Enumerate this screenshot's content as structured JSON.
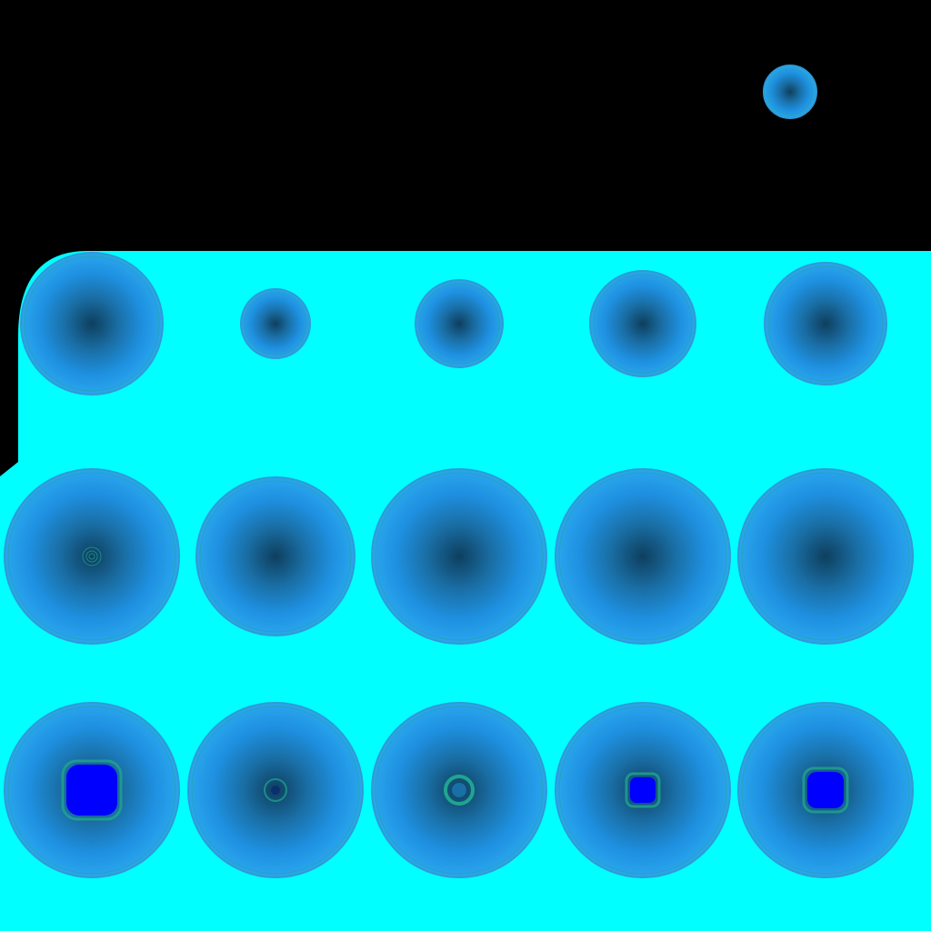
{
  "sprite_sheet": {
    "colors": {
      "background": "#000000",
      "panel": "#00FFFF",
      "orb_edge": "#2E9BD6",
      "orb_fill": "#1E90E0",
      "orb_core": "#0E3F5E",
      "orb_ring": "#1FA58F",
      "core_hole": "#0000FF"
    },
    "rows": [
      {
        "name": "sprite-row-top",
        "sprites": [
          {
            "name": "orb-sprite-tiny",
            "variant": "plain"
          }
        ]
      },
      {
        "name": "sprite-row-small",
        "sprites": [
          {
            "name": "orb-sprite-row2-1",
            "variant": "plain"
          },
          {
            "name": "orb-sprite-row2-2",
            "variant": "plain"
          },
          {
            "name": "orb-sprite-row2-3",
            "variant": "plain"
          },
          {
            "name": "orb-sprite-row2-4",
            "variant": "plain"
          },
          {
            "name": "orb-sprite-row2-5",
            "variant": "plain"
          }
        ]
      },
      {
        "name": "sprite-row-large",
        "sprites": [
          {
            "name": "orb-sprite-row3-1",
            "variant": "ringed"
          },
          {
            "name": "orb-sprite-row3-2",
            "variant": "plain"
          },
          {
            "name": "orb-sprite-row3-3",
            "variant": "plain"
          },
          {
            "name": "orb-sprite-row3-4",
            "variant": "plain"
          },
          {
            "name": "orb-sprite-row3-5",
            "variant": "plain"
          }
        ]
      },
      {
        "name": "sprite-row-cored",
        "sprites": [
          {
            "name": "orb-sprite-row4-1",
            "variant": "hole-large"
          },
          {
            "name": "orb-sprite-row4-2",
            "variant": "dot"
          },
          {
            "name": "orb-sprite-row4-3",
            "variant": "ring-core"
          },
          {
            "name": "orb-sprite-row4-4",
            "variant": "hole-small"
          },
          {
            "name": "orb-sprite-row4-5",
            "variant": "hole-medium"
          }
        ]
      }
    ]
  }
}
